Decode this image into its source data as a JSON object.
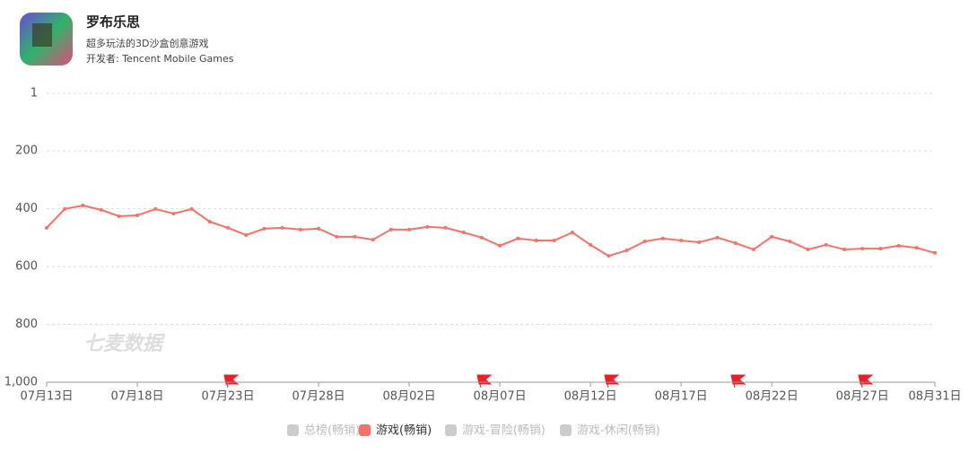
{
  "app": {
    "name": "罗布乐思",
    "subtitle": "超多玩法的3D沙盒创意游戏",
    "developer": "开发者: Tencent Mobile Games"
  },
  "watermark": "七麦数据",
  "chart_data": {
    "type": "line",
    "categories": [
      "07月13日",
      null,
      null,
      null,
      null,
      "07月18日",
      null,
      null,
      null,
      null,
      "07月23日",
      null,
      null,
      null,
      null,
      "07月28日",
      null,
      null,
      null,
      null,
      "08月02日",
      null,
      null,
      null,
      null,
      "08月07日",
      null,
      null,
      null,
      null,
      "08月12日",
      null,
      null,
      null,
      null,
      "08月17日",
      null,
      null,
      null,
      null,
      "08月22日",
      null,
      null,
      null,
      null,
      "08月27日",
      null,
      null,
      null,
      "08月31日"
    ],
    "series": [
      {
        "name": "总榜(畅销)",
        "color": "#cccccc",
        "visible": false
      },
      {
        "name": "游戏(畅销)",
        "color": "#f4726a",
        "visible": true,
        "values": [
          466,
          401,
          389,
          404,
          426,
          423,
          401,
          417,
          401,
          445,
          466,
          491,
          469,
          466,
          472,
          469,
          497,
          497,
          507,
          472,
          472,
          463,
          466,
          482,
          500,
          528,
          503,
          510,
          510,
          482,
          525,
          563,
          544,
          513,
          503,
          510,
          516,
          500,
          519,
          541,
          497,
          513,
          541,
          525,
          541,
          538,
          538,
          528,
          535,
          553
        ]
      },
      {
        "name": "游戏-冒险(畅销)",
        "color": "#cccccc",
        "visible": false
      },
      {
        "name": "游戏-休闲(畅销)",
        "color": "#cccccc",
        "visible": false
      }
    ],
    "ylim": [
      1000,
      1
    ],
    "yticks": [
      1,
      200,
      400,
      600,
      800,
      {
        "value": 1000,
        "label": "1,000"
      }
    ],
    "grid": true
  }
}
